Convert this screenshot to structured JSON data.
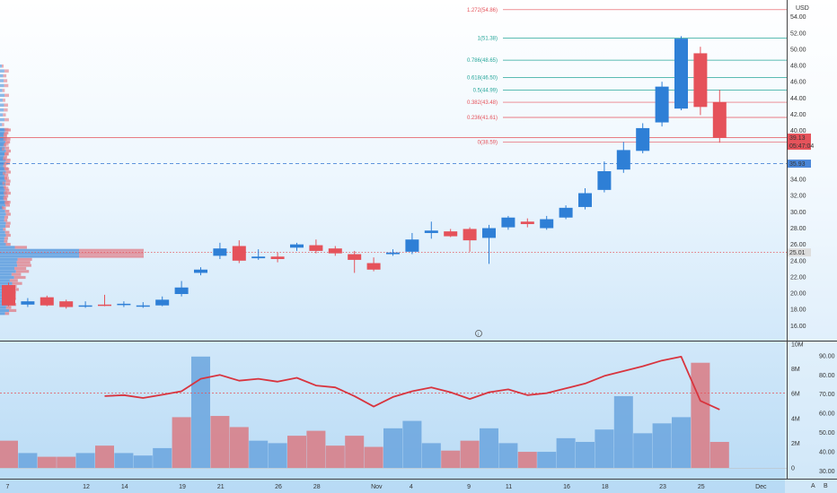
{
  "chart_data": {
    "type": "candlestick",
    "currency": "USD",
    "x_labels": [
      "7",
      "12",
      "14",
      "19",
      "21",
      "26",
      "28",
      "Nov",
      "4",
      "9",
      "11",
      "16",
      "18",
      "23",
      "25",
      "Dec"
    ],
    "price_axis": {
      "ticks": [
        16.0,
        18.0,
        20.0,
        22.0,
        24.0,
        26.0,
        28.0,
        30.0,
        32.0,
        34.0,
        36.0,
        38.0,
        40.0,
        42.0,
        44.0,
        46.0,
        48.0,
        50.0,
        52.0,
        54.0
      ],
      "range": [
        14.5,
        55.5
      ]
    },
    "price_badges": [
      {
        "value": "39.13",
        "color": "#e5525a"
      },
      {
        "value": "05:47:04",
        "color": "#e5525a"
      },
      {
        "value": "35.93",
        "color": "#4a86d8"
      },
      {
        "value": "25.01",
        "color": "#dddddd"
      }
    ],
    "reference_lines": [
      {
        "price": 39.13,
        "color": "#e5525a",
        "style": "solid"
      },
      {
        "price": 35.93,
        "color": "#4a86d8",
        "style": "dashed"
      },
      {
        "price": 25.01,
        "color": "#e5525a",
        "style": "dotted"
      }
    ],
    "fib_levels": [
      {
        "label": "1.272(54.86)",
        "price": 54.86,
        "color": "#e5525a"
      },
      {
        "label": "1(51.38)",
        "price": 51.38,
        "color": "#26a69a"
      },
      {
        "label": "0.786(48.65)",
        "price": 48.65,
        "color": "#26a69a"
      },
      {
        "label": "0.618(46.50)",
        "price": 46.5,
        "color": "#26a69a"
      },
      {
        "label": "0.5(44.99)",
        "price": 44.99,
        "color": "#26a69a"
      },
      {
        "label": "0.382(43.48)",
        "price": 43.48,
        "color": "#e5525a"
      },
      {
        "label": "0.236(41.61)",
        "price": 41.61,
        "color": "#e5525a"
      },
      {
        "label": "0(38.59)",
        "price": 38.59,
        "color": "#e5525a"
      }
    ],
    "candles": [
      {
        "o": 21.0,
        "h": 21.3,
        "l": 18.4,
        "c": 18.5
      },
      {
        "o": 18.6,
        "h": 19.4,
        "l": 18.3,
        "c": 19.0
      },
      {
        "o": 19.5,
        "h": 19.7,
        "l": 18.4,
        "c": 18.5
      },
      {
        "o": 19.0,
        "h": 19.2,
        "l": 18.1,
        "c": 18.3
      },
      {
        "o": 18.4,
        "h": 19.0,
        "l": 18.2,
        "c": 18.5
      },
      {
        "o": 18.6,
        "h": 19.8,
        "l": 18.4,
        "c": 18.5
      },
      {
        "o": 18.6,
        "h": 19.0,
        "l": 18.3,
        "c": 18.7
      },
      {
        "o": 18.4,
        "h": 18.9,
        "l": 18.2,
        "c": 18.5
      },
      {
        "o": 18.5,
        "h": 19.6,
        "l": 18.4,
        "c": 19.2
      },
      {
        "o": 19.9,
        "h": 21.5,
        "l": 19.6,
        "c": 20.7
      },
      {
        "o": 22.5,
        "h": 23.2,
        "l": 22.2,
        "c": 22.9
      },
      {
        "o": 24.6,
        "h": 26.2,
        "l": 24.2,
        "c": 25.5
      },
      {
        "o": 25.8,
        "h": 26.5,
        "l": 23.7,
        "c": 24.0
      },
      {
        "o": 24.3,
        "h": 25.4,
        "l": 24.1,
        "c": 24.5
      },
      {
        "o": 24.5,
        "h": 25.0,
        "l": 23.8,
        "c": 24.2
      },
      {
        "o": 25.6,
        "h": 26.2,
        "l": 25.2,
        "c": 26.0
      },
      {
        "o": 25.9,
        "h": 26.6,
        "l": 24.9,
        "c": 25.2
      },
      {
        "o": 25.5,
        "h": 25.8,
        "l": 24.6,
        "c": 24.9
      },
      {
        "o": 24.8,
        "h": 25.2,
        "l": 22.5,
        "c": 24.1
      },
      {
        "o": 23.7,
        "h": 24.4,
        "l": 22.7,
        "c": 22.9
      },
      {
        "o": 24.8,
        "h": 25.4,
        "l": 24.6,
        "c": 25.0
      },
      {
        "o": 25.1,
        "h": 27.4,
        "l": 24.8,
        "c": 26.6
      },
      {
        "o": 27.4,
        "h": 28.8,
        "l": 26.7,
        "c": 27.7
      },
      {
        "o": 27.6,
        "h": 27.9,
        "l": 26.9,
        "c": 27.0
      },
      {
        "o": 27.9,
        "h": 28.1,
        "l": 25.1,
        "c": 26.5
      },
      {
        "o": 26.8,
        "h": 28.4,
        "l": 23.6,
        "c": 28.0
      },
      {
        "o": 28.1,
        "h": 29.5,
        "l": 27.8,
        "c": 29.3
      },
      {
        "o": 28.8,
        "h": 29.2,
        "l": 28.1,
        "c": 28.5
      },
      {
        "o": 28.0,
        "h": 29.5,
        "l": 27.8,
        "c": 29.1
      },
      {
        "o": 29.3,
        "h": 30.8,
        "l": 29.1,
        "c": 30.5
      },
      {
        "o": 30.6,
        "h": 32.9,
        "l": 30.3,
        "c": 32.3
      },
      {
        "o": 32.7,
        "h": 36.2,
        "l": 32.4,
        "c": 35.0
      },
      {
        "o": 35.2,
        "h": 38.6,
        "l": 34.8,
        "c": 37.6
      },
      {
        "o": 37.5,
        "h": 40.9,
        "l": 37.2,
        "c": 40.3
      },
      {
        "o": 41.0,
        "h": 46.0,
        "l": 40.5,
        "c": 45.4
      },
      {
        "o": 42.7,
        "h": 51.6,
        "l": 42.5,
        "c": 51.3
      },
      {
        "o": 49.5,
        "h": 50.3,
        "l": 41.9,
        "c": 42.9
      },
      {
        "o": 43.5,
        "h": 45.0,
        "l": 38.5,
        "c": 39.1
      }
    ],
    "volume_axis": {
      "ticks": [
        "0",
        "2M",
        "4M",
        "6M",
        "8M",
        "10M"
      ],
      "max": 10
    },
    "volumes": [
      2.2,
      1.2,
      0.9,
      0.9,
      1.2,
      1.8,
      1.2,
      1.0,
      1.6,
      4.1,
      9.0,
      4.2,
      3.3,
      2.2,
      2.0,
      2.6,
      3.0,
      1.8,
      2.6,
      1.7,
      3.2,
      3.8,
      2.0,
      1.4,
      2.2,
      3.2,
      2.0,
      1.3,
      1.3,
      2.4,
      2.1,
      3.1,
      5.8,
      2.8,
      3.6,
      4.1,
      8.5,
      2.1
    ],
    "volume_colors": [
      "r",
      "b",
      "r",
      "r",
      "b",
      "r",
      "b",
      "b",
      "b",
      "r",
      "b",
      "r",
      "r",
      "b",
      "b",
      "r",
      "r",
      "r",
      "r",
      "r",
      "b",
      "b",
      "b",
      "r",
      "r",
      "b",
      "b",
      "r",
      "b",
      "b",
      "b",
      "b",
      "b",
      "b",
      "b",
      "b",
      "r",
      "r"
    ],
    "rsi": {
      "ticks": [
        "30.00",
        "40.00",
        "50.00",
        "60.00",
        "70.00",
        "80.00",
        "90.00"
      ],
      "range": [
        26,
        96
      ],
      "reference": 70.5,
      "start_index": 5,
      "values": [
        69.0,
        69.5,
        68.0,
        69.7,
        71.5,
        78.0,
        80.0,
        77.0,
        78.0,
        76.5,
        78.5,
        74.5,
        73.5,
        69.0,
        63.5,
        68.5,
        71.5,
        73.5,
        71.0,
        67.5,
        71.0,
        72.5,
        69.5,
        70.5,
        73.0,
        75.5,
        79.5,
        82.0,
        84.5,
        87.5,
        89.5,
        66.5,
        62.0
      ]
    }
  },
  "price_scale_label": "USD",
  "bottom_right_labels": [
    "A",
    "B"
  ],
  "info_marker": "i",
  "colors": {
    "up": "#2e7fd6",
    "down": "#e5525a",
    "bg_top": "#ffffff",
    "bg_bottom": "#b9dcf6"
  }
}
